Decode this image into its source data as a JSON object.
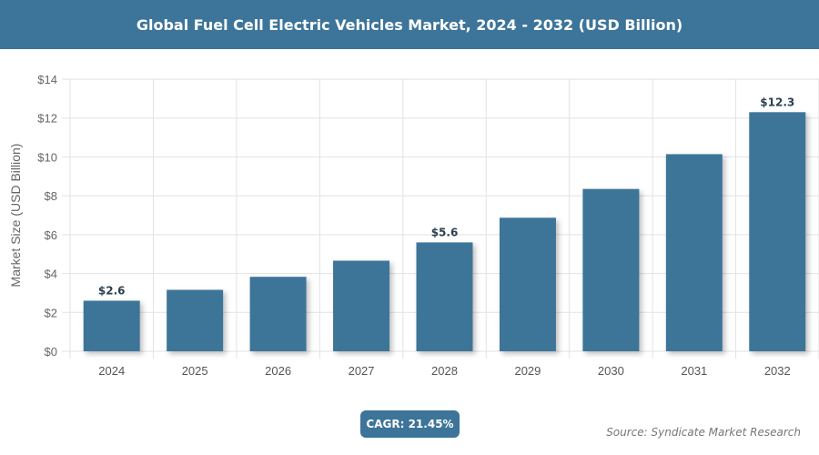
{
  "header": {
    "title": "Global Fuel Cell Electric Vehicles Market, 2024 - 2032 (USD Billion)"
  },
  "chart_data": {
    "type": "bar",
    "title": "Global Fuel Cell Electric Vehicles Market, 2024 - 2032 (USD Billion)",
    "xlabel": "",
    "ylabel": "Market Size (USD Billion)",
    "ylim": [
      0,
      14
    ],
    "yticks": [
      "$0",
      "$2",
      "$4",
      "$6",
      "$8",
      "$10",
      "$12",
      "$14"
    ],
    "grid": true,
    "categories": [
      "2024",
      "2025",
      "2026",
      "2027",
      "2028",
      "2029",
      "2030",
      "2031",
      "2032"
    ],
    "values": [
      2.6,
      3.16,
      3.83,
      4.66,
      5.6,
      6.87,
      8.35,
      10.14,
      12.3
    ],
    "data_labels": {
      "0": "$2.6",
      "4": "$5.6",
      "8": "$12.3"
    },
    "bar_color": "#3d7499"
  },
  "footer": {
    "cagr": "CAGR: 21.45%",
    "source": "Source: Syndicate Market Research"
  }
}
